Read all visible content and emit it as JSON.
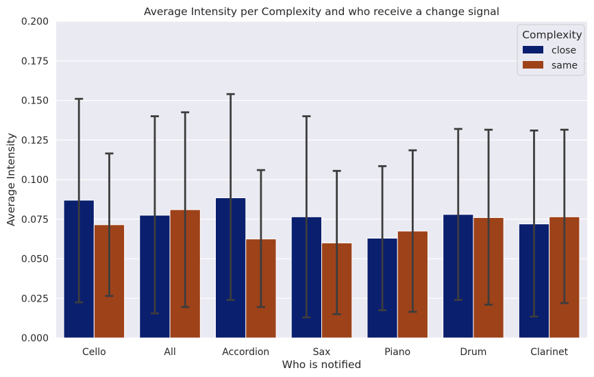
{
  "chart_data": {
    "type": "bar",
    "title": "Average Intensity per Complexity and who receive a change signal",
    "xlabel": "Who is notified",
    "ylabel": "Average Intensity",
    "ylim": [
      0,
      0.2
    ],
    "yticks": [
      "0.000",
      "0.025",
      "0.050",
      "0.075",
      "0.100",
      "0.125",
      "0.150",
      "0.175",
      "0.200"
    ],
    "grid": true,
    "legend": {
      "title": "Complexity",
      "placement": "top-right"
    },
    "categories": [
      "Cello",
      "All",
      "Accordion",
      "Sax",
      "Piano",
      "Drum",
      "Clarinet"
    ],
    "series": [
      {
        "name": "close",
        "color": "#0a1f6e",
        "values": [
          0.087,
          0.0775,
          0.0885,
          0.0765,
          0.063,
          0.078,
          0.072
        ],
        "err_low": [
          0.0225,
          0.0155,
          0.024,
          0.013,
          0.0175,
          0.024,
          0.0135
        ],
        "err_high": [
          0.151,
          0.14,
          0.154,
          0.14,
          0.1085,
          0.132,
          0.131
        ]
      },
      {
        "name": "same",
        "color": "#9e421a",
        "values": [
          0.0715,
          0.081,
          0.0625,
          0.06,
          0.0675,
          0.076,
          0.0765
        ],
        "err_low": [
          0.0265,
          0.0195,
          0.0195,
          0.015,
          0.0165,
          0.021,
          0.022
        ],
        "err_high": [
          0.1165,
          0.1425,
          0.106,
          0.1055,
          0.1185,
          0.1315,
          0.1315
        ]
      }
    ]
  }
}
